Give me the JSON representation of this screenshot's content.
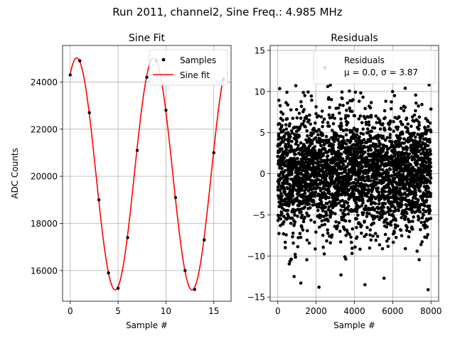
{
  "figure": {
    "suptitle": "Run 2011, channel2, Sine Freq.: 4.985 MHz"
  },
  "chart_data": [
    {
      "type": "scatter",
      "title": "Sine Fit",
      "xlabel": "Sample #",
      "ylabel": "ADC Counts",
      "xlim": [
        -0.8,
        16.8
      ],
      "ylim": [
        14700,
        25550
      ],
      "xticks": [
        0,
        5,
        10,
        15
      ],
      "yticks": [
        16000,
        18000,
        20000,
        22000,
        24000
      ],
      "grid": true,
      "legend": {
        "placement": "top-right",
        "entries": [
          "Samples",
          "Sine fit"
        ]
      },
      "series": [
        {
          "name": "Samples",
          "kind": "points",
          "color": "#000000",
          "x": [
            0,
            1,
            2,
            3,
            4,
            5,
            6,
            7,
            8,
            9,
            10,
            11,
            12,
            13,
            14,
            15,
            16
          ],
          "y": [
            24300,
            24900,
            22700,
            19000,
            15900,
            15250,
            17400,
            21100,
            24200,
            24900,
            22800,
            19100,
            16000,
            15200,
            17300,
            21000,
            24100
          ]
        },
        {
          "name": "Sine fit",
          "kind": "line",
          "color": "#ff0000",
          "model": {
            "offset": 20100,
            "amplitude": 4920,
            "period": 8.03,
            "phase_sample": 0.68
          }
        }
      ]
    },
    {
      "type": "scatter",
      "title": "Residuals",
      "xlabel": "Sample #",
      "ylabel": "",
      "xlim": [
        -400,
        8400
      ],
      "ylim": [
        -15.5,
        15.6
      ],
      "xticks": [
        0,
        2000,
        4000,
        6000,
        8000
      ],
      "yticks": [
        -15,
        -10,
        -5,
        0,
        5,
        10,
        15
      ],
      "grid": true,
      "legend": {
        "placement": "top-right",
        "entries": [
          "Residuals",
          "μ = 0.0, σ = 3.87"
        ]
      },
      "series": [
        {
          "name": "Residuals",
          "kind": "points",
          "color": "#000000",
          "count": 8000,
          "mean": 0.0,
          "std": 3.87,
          "outliers": [
            {
              "x": 2150,
              "y": -13.8
            },
            {
              "x": 4550,
              "y": -13.5
            },
            {
              "x": 7850,
              "y": -14.1
            },
            {
              "x": 1200,
              "y": -13.3
            },
            {
              "x": 2450,
              "y": 12.9
            },
            {
              "x": 850,
              "y": -12.5
            },
            {
              "x": 3300,
              "y": -12.3
            },
            {
              "x": 5550,
              "y": -12.7
            }
          ]
        }
      ]
    }
  ]
}
